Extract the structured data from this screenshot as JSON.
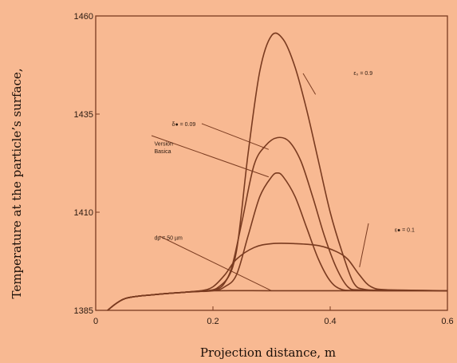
{
  "chart_data": {
    "type": "line",
    "title": "",
    "xlabel": "Projection distance, m",
    "ylabel": "Temperature at the particle’s surface,",
    "xlim": [
      0,
      0.6
    ],
    "ylim": [
      1385,
      1460
    ],
    "xticks": [
      0,
      0.2,
      0.4,
      0.6
    ],
    "xtick_labels": [
      "0",
      "0.2",
      "0.4",
      "0.6"
    ],
    "yticks": [
      1385,
      1410,
      1435,
      1460
    ],
    "ytick_labels": [
      "1385",
      "1410",
      "1435",
      "1460"
    ],
    "grid": false,
    "colors": {
      "line": "#7a3b20",
      "text": "#2b1a10",
      "background": "#F8B992"
    },
    "annotations": [
      {
        "text": "ε₀ = 0.9",
        "x": 0.44,
        "y": 1445
      },
      {
        "text": "δ● = 0.09",
        "x": 0.13,
        "y": 1432
      },
      {
        "text": "Version",
        "x": 0.1,
        "y": 1427
      },
      {
        "text": "Basica",
        "x": 0.1,
        "y": 1425
      },
      {
        "text": "ε● = 0.1",
        "x": 0.51,
        "y": 1405
      },
      {
        "text": "dp = 50 µm",
        "x": 0.1,
        "y": 1403
      }
    ],
    "series": [
      {
        "points": [
          [
            0.02,
            1385
          ],
          [
            0.05,
            1388
          ],
          [
            0.1,
            1389
          ],
          [
            0.15,
            1389.6
          ],
          [
            0.18,
            1390
          ],
          [
            0.2,
            1390.2
          ],
          [
            0.22,
            1392
          ],
          [
            0.24,
            1400
          ],
          [
            0.26,
            1425
          ],
          [
            0.28,
            1446
          ],
          [
            0.3,
            1455
          ],
          [
            0.32,
            1454
          ],
          [
            0.34,
            1447
          ],
          [
            0.36,
            1436
          ],
          [
            0.38,
            1423
          ],
          [
            0.4,
            1410
          ],
          [
            0.42,
            1400
          ],
          [
            0.44,
            1392
          ],
          [
            0.46,
            1390.3
          ],
          [
            0.5,
            1390.2
          ],
          [
            0.6,
            1390
          ]
        ]
      },
      {
        "points": [
          [
            0.02,
            1385
          ],
          [
            0.05,
            1388
          ],
          [
            0.1,
            1389
          ],
          [
            0.15,
            1389.6
          ],
          [
            0.19,
            1390
          ],
          [
            0.21,
            1391
          ],
          [
            0.23,
            1395
          ],
          [
            0.25,
            1408
          ],
          [
            0.27,
            1422
          ],
          [
            0.29,
            1427
          ],
          [
            0.31,
            1429
          ],
          [
            0.33,
            1428
          ],
          [
            0.35,
            1423
          ],
          [
            0.37,
            1414
          ],
          [
            0.39,
            1404
          ],
          [
            0.41,
            1396
          ],
          [
            0.43,
            1391
          ],
          [
            0.45,
            1390.2
          ],
          [
            0.5,
            1390.1
          ],
          [
            0.6,
            1390
          ]
        ]
      },
      {
        "points": [
          [
            0.02,
            1385
          ],
          [
            0.05,
            1388
          ],
          [
            0.1,
            1389
          ],
          [
            0.15,
            1389.6
          ],
          [
            0.2,
            1390
          ],
          [
            0.22,
            1391
          ],
          [
            0.24,
            1394
          ],
          [
            0.26,
            1404
          ],
          [
            0.28,
            1414
          ],
          [
            0.3,
            1419
          ],
          [
            0.31,
            1420
          ],
          [
            0.32,
            1419
          ],
          [
            0.34,
            1414
          ],
          [
            0.36,
            1406
          ],
          [
            0.38,
            1398
          ],
          [
            0.4,
            1392.5
          ],
          [
            0.42,
            1390.3
          ],
          [
            0.45,
            1390.1
          ],
          [
            0.5,
            1390
          ],
          [
            0.6,
            1390
          ]
        ]
      },
      {
        "points": [
          [
            0.02,
            1385
          ],
          [
            0.05,
            1388
          ],
          [
            0.1,
            1389
          ],
          [
            0.15,
            1389.6
          ],
          [
            0.18,
            1390
          ],
          [
            0.2,
            1391
          ],
          [
            0.22,
            1394
          ],
          [
            0.24,
            1398
          ],
          [
            0.27,
            1401
          ],
          [
            0.3,
            1402
          ],
          [
            0.34,
            1402
          ],
          [
            0.38,
            1401.5
          ],
          [
            0.41,
            1400
          ],
          [
            0.43,
            1398
          ],
          [
            0.45,
            1394
          ],
          [
            0.47,
            1391
          ],
          [
            0.5,
            1390.2
          ],
          [
            0.6,
            1390
          ]
        ]
      },
      {
        "points": [
          [
            0.02,
            1385
          ],
          [
            0.05,
            1388
          ],
          [
            0.1,
            1389
          ],
          [
            0.15,
            1389.6
          ],
          [
            0.2,
            1390
          ],
          [
            0.3,
            1390
          ],
          [
            0.4,
            1390
          ],
          [
            0.5,
            1390
          ],
          [
            0.6,
            1390
          ]
        ]
      }
    ]
  }
}
